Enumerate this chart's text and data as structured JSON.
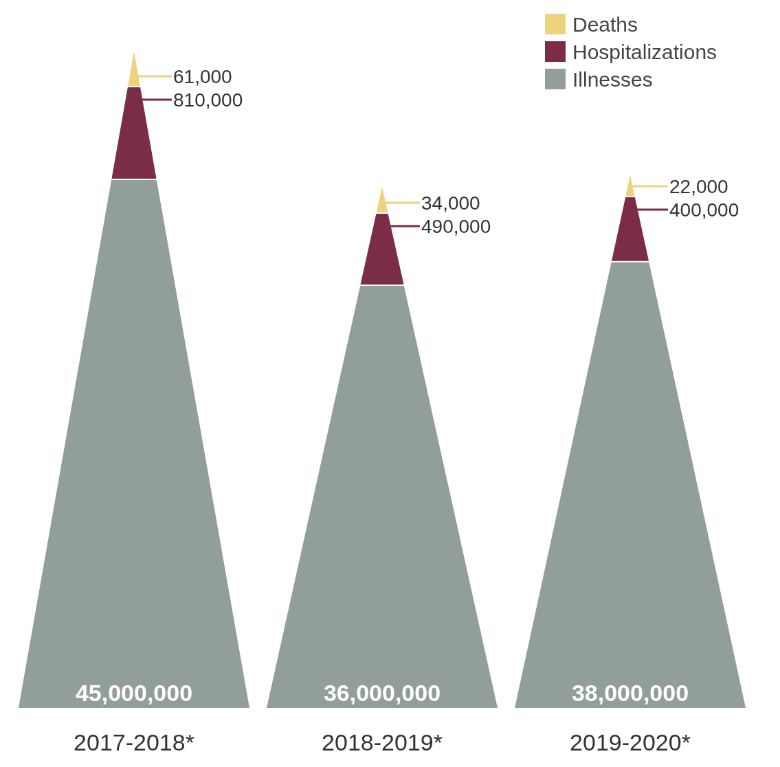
{
  "chart_data": {
    "type": "other",
    "categories": [
      "2017-2018*",
      "2018-2019*",
      "2019-2020*"
    ],
    "series": [
      {
        "name": "Deaths",
        "color": "#efd27e",
        "values": [
          61000,
          34000,
          22000
        ],
        "value_labels": [
          "61,000",
          "34,000",
          "22,000"
        ]
      },
      {
        "name": "Hospitalizations",
        "color": "#7b2d47",
        "values": [
          810000,
          490000,
          400000
        ],
        "value_labels": [
          "810,000",
          "490,000",
          "400,000"
        ]
      },
      {
        "name": "Illnesses",
        "color": "#929f99",
        "values": [
          45000000,
          36000000,
          38000000
        ],
        "value_labels": [
          "45,000,000",
          "36,000,000",
          "38,000,000"
        ]
      }
    ],
    "legend": "top right"
  }
}
